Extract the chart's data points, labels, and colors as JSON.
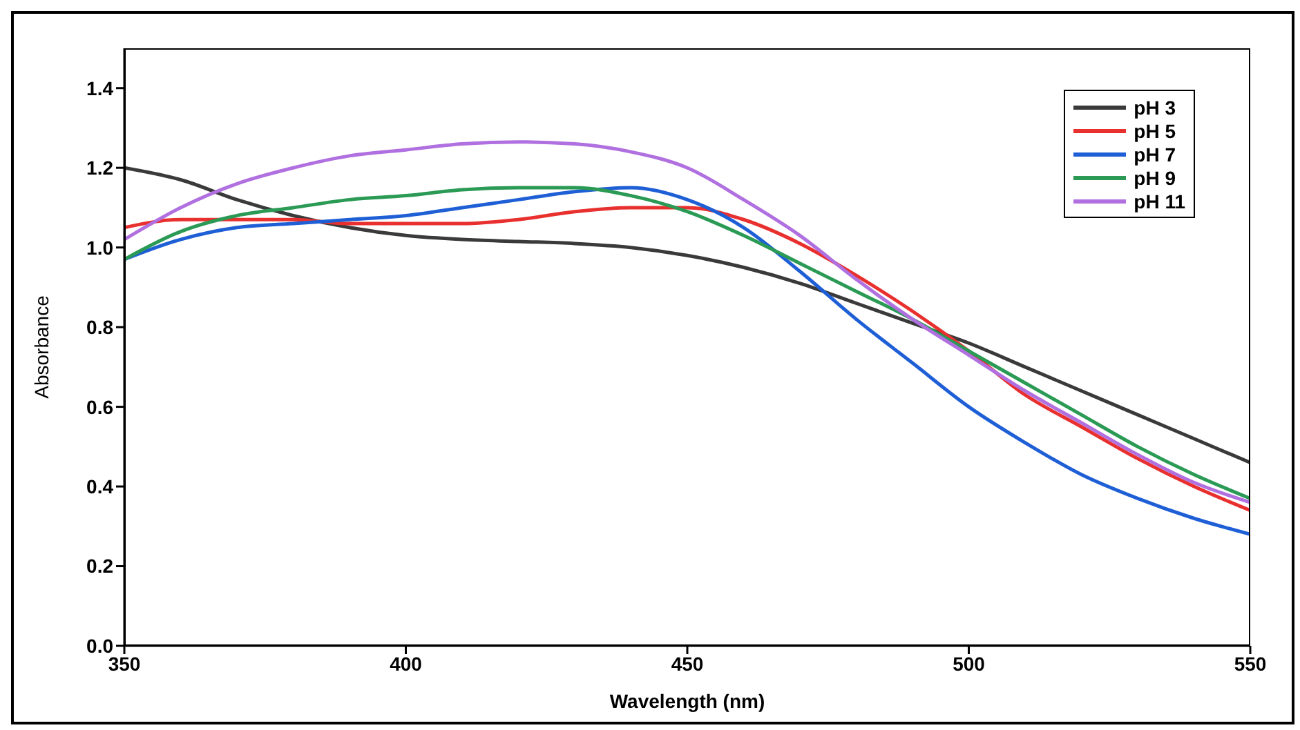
{
  "chart_data": {
    "type": "line",
    "xlabel": "Wavelength (nm)",
    "ylabel": "Absorbance",
    "x": [
      350,
      360,
      370,
      380,
      390,
      400,
      410,
      420,
      430,
      440,
      450,
      460,
      470,
      480,
      490,
      500,
      510,
      520,
      530,
      540,
      550
    ],
    "series": [
      {
        "name": "pH 3",
        "color": "#3a3a3a",
        "values": [
          1.2,
          1.17,
          1.12,
          1.08,
          1.05,
          1.03,
          1.02,
          1.015,
          1.01,
          1.0,
          0.98,
          0.95,
          0.91,
          0.86,
          0.81,
          0.76,
          0.7,
          0.64,
          0.58,
          0.52,
          0.46
        ]
      },
      {
        "name": "pH 5",
        "color": "#e8302f",
        "values": [
          1.05,
          1.07,
          1.07,
          1.07,
          1.06,
          1.06,
          1.06,
          1.07,
          1.09,
          1.1,
          1.1,
          1.07,
          1.01,
          0.93,
          0.84,
          0.74,
          0.63,
          0.55,
          0.47,
          0.4,
          0.34
        ]
      },
      {
        "name": "pH 7",
        "color": "#1f5fd6",
        "values": [
          0.97,
          1.02,
          1.05,
          1.06,
          1.07,
          1.08,
          1.1,
          1.12,
          1.14,
          1.15,
          1.12,
          1.05,
          0.94,
          0.82,
          0.71,
          0.6,
          0.51,
          0.43,
          0.37,
          0.32,
          0.28
        ]
      },
      {
        "name": "pH 9",
        "color": "#2a9a55",
        "values": [
          0.97,
          1.04,
          1.08,
          1.1,
          1.12,
          1.13,
          1.145,
          1.15,
          1.15,
          1.13,
          1.09,
          1.03,
          0.96,
          0.89,
          0.82,
          0.74,
          0.66,
          0.58,
          0.5,
          0.43,
          0.37
        ]
      },
      {
        "name": "pH 11",
        "color": "#b070e0",
        "values": [
          1.02,
          1.1,
          1.16,
          1.2,
          1.23,
          1.245,
          1.26,
          1.265,
          1.26,
          1.24,
          1.2,
          1.12,
          1.03,
          0.92,
          0.82,
          0.73,
          0.64,
          0.56,
          0.48,
          0.41,
          0.36
        ]
      }
    ],
    "xlim": [
      350,
      550
    ],
    "xticks": [
      350,
      400,
      450,
      500,
      550
    ],
    "ylim": [
      0,
      1.5
    ],
    "yticks": [
      {
        "value": 0,
        "label": "0.0"
      },
      {
        "value": 0.2,
        "label": "0.2"
      },
      {
        "value": 0.4,
        "label": "0.4"
      },
      {
        "value": 0.6,
        "label": "0.6"
      },
      {
        "value": 0.8,
        "label": "0.8"
      },
      {
        "value": 1,
        "label": "1.0"
      },
      {
        "value": 1.2,
        "label": "1.2"
      },
      {
        "value": 1.4,
        "label": "1.4"
      }
    ],
    "grid": false,
    "legend": "top right",
    "marker": "none",
    "line_style": "solid"
  }
}
